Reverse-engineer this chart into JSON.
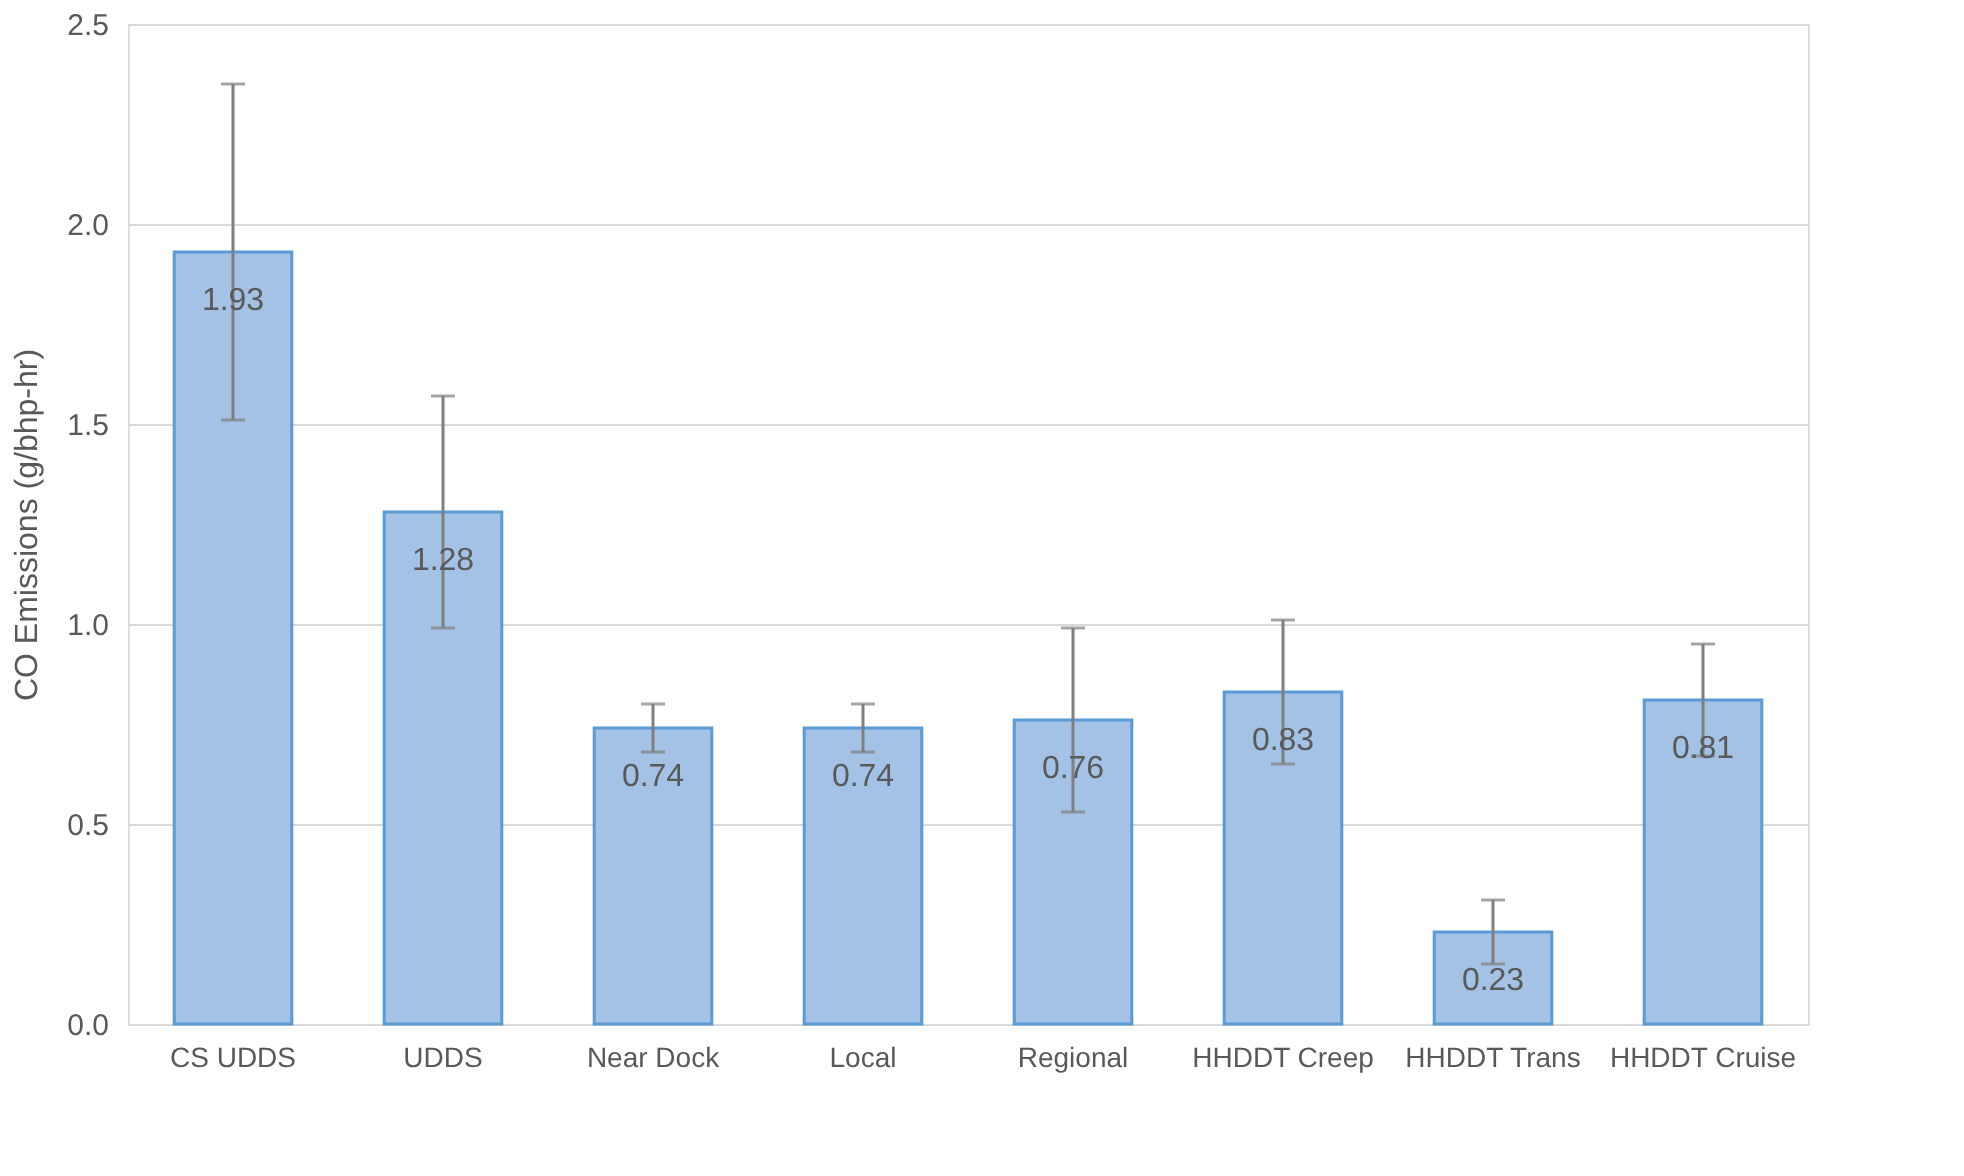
{
  "chart_data": {
    "type": "bar",
    "ylabel": "CO Emissions (g/bhp-hr)",
    "categories": [
      "CS  UDDS",
      "UDDS",
      "Near Dock",
      "Local",
      "Regional",
      "HHDDT Creep",
      "HHDDT Trans",
      "HHDDT Cruise"
    ],
    "values": [
      1.93,
      1.28,
      0.74,
      0.74,
      0.76,
      0.83,
      0.23,
      0.81
    ],
    "errors": [
      0.42,
      0.29,
      0.06,
      0.06,
      0.23,
      0.18,
      0.08,
      0.14
    ],
    "color": "#a3c2e6",
    "ylim": [
      0,
      2.5
    ],
    "yticks": [
      {
        "value": 0,
        "label": "0.0"
      },
      0.5,
      {
        "value": 1,
        "label": "1.0"
      },
      1.5,
      {
        "value": 2,
        "label": "2.0"
      },
      2.5
    ],
    "grid": "y",
    "data_labels": true
  }
}
